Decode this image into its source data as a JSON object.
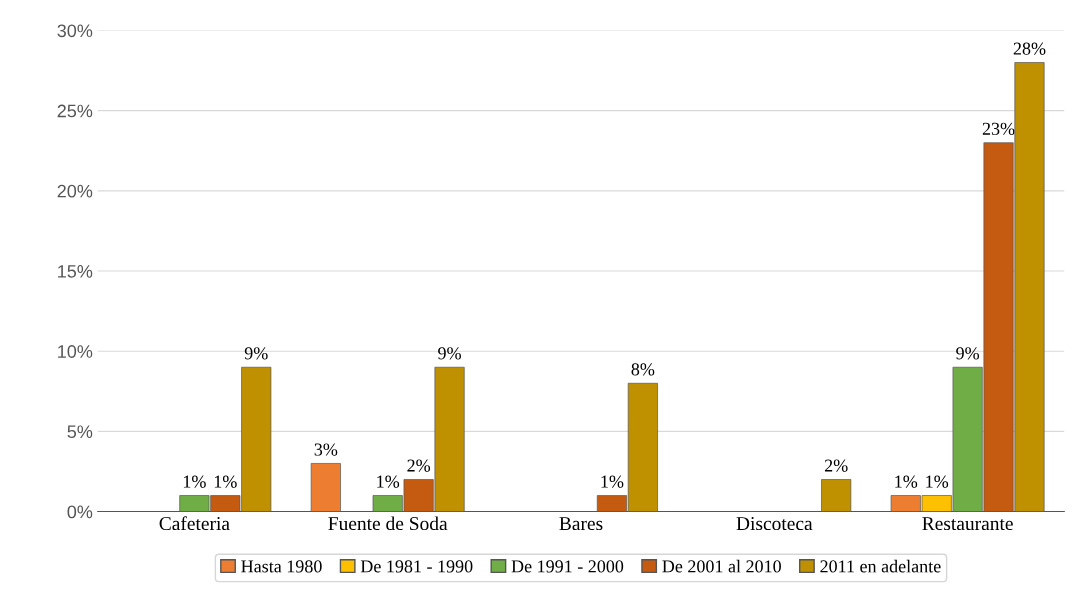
{
  "chart_data": {
    "type": "bar",
    "categories": [
      "Cafeteria",
      "Fuente de Soda",
      "Bares",
      "Discoteca",
      "Restaurante"
    ],
    "series": [
      {
        "name": "Hasta 1980",
        "color": "#ed7d31",
        "values": [
          null,
          3,
          null,
          null,
          1
        ],
        "value_labels": [
          null,
          "3%",
          null,
          null,
          "1%"
        ]
      },
      {
        "name": "De 1981 - 1990",
        "color": "#ffc000",
        "values": [
          null,
          null,
          null,
          null,
          1
        ],
        "value_labels": [
          null,
          null,
          null,
          null,
          "1%"
        ]
      },
      {
        "name": "De 1991 - 2000",
        "color": "#70ad47",
        "values": [
          1,
          1,
          null,
          null,
          9
        ],
        "value_labels": [
          "1%",
          "1%",
          null,
          null,
          "9%"
        ]
      },
      {
        "name": "De 2001 al 2010",
        "color": "#c55a11",
        "values": [
          1,
          2,
          1,
          null,
          23
        ],
        "value_labels": [
          "1%",
          "2%",
          "1%",
          null,
          "23%"
        ]
      },
      {
        "name": "2011 en adelante",
        "color": "#bf9000",
        "values": [
          9,
          9,
          8,
          2,
          28
        ],
        "value_labels": [
          "9%",
          "9%",
          "8%",
          "2%",
          "28%"
        ]
      }
    ],
    "ylim": [
      0,
      30
    ],
    "yticks": [
      {
        "value": 0,
        "label": "0%"
      },
      {
        "value": 5,
        "label": "5%"
      },
      {
        "value": 10,
        "label": "10%"
      },
      {
        "value": 15,
        "label": "15%"
      },
      {
        "value": 20,
        "label": "20%"
      },
      {
        "value": 25,
        "label": "25%"
      },
      {
        "value": 30,
        "label": "30%"
      }
    ],
    "grid": "y",
    "legend": "bottom"
  }
}
